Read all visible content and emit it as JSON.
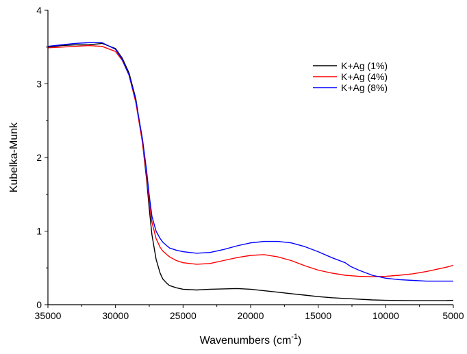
{
  "chart_data": {
    "type": "line",
    "title": "",
    "xlabel": "Wavenumbers (cm",
    "xlabel_sup": "-1",
    "xlabel_suffix": ")",
    "ylabel": "Kubelka-Munk",
    "xlim": [
      35000,
      5000
    ],
    "ylim": [
      0,
      4
    ],
    "x_ticks": [
      35000,
      30000,
      25000,
      20000,
      15000,
      10000,
      5000
    ],
    "x_tick_labels": [
      "35000",
      "30000",
      "25000",
      "20000",
      "15000",
      "10000",
      "5000"
    ],
    "y_ticks": [
      0,
      1,
      2,
      3,
      4
    ],
    "y_tick_labels": [
      "0",
      "1",
      "2",
      "3",
      "4"
    ],
    "grid": false,
    "legend_position": "top-right",
    "series": [
      {
        "name": "K+Ag (1%)",
        "color": "#000000",
        "x": [
          35000,
          34000,
          33000,
          32000,
          31000,
          30000,
          29500,
          29000,
          28500,
          28000,
          27700,
          27500,
          27300,
          27000,
          26700,
          26500,
          26200,
          26000,
          25500,
          25000,
          24000,
          23000,
          22000,
          21000,
          20000,
          19000,
          18000,
          17000,
          16000,
          15000,
          14000,
          13000,
          12000,
          11000,
          10000,
          9000,
          8000,
          7000,
          6000,
          5500,
          5000
        ],
        "y": [
          3.5,
          3.52,
          3.53,
          3.53,
          3.55,
          3.48,
          3.35,
          3.15,
          2.8,
          2.2,
          1.7,
          1.3,
          0.95,
          0.62,
          0.43,
          0.35,
          0.29,
          0.26,
          0.23,
          0.21,
          0.2,
          0.21,
          0.215,
          0.22,
          0.21,
          0.19,
          0.17,
          0.15,
          0.13,
          0.11,
          0.095,
          0.085,
          0.075,
          0.065,
          0.06,
          0.058,
          0.055,
          0.055,
          0.055,
          0.056,
          0.06
        ]
      },
      {
        "name": "K+Ag (4%)",
        "color": "#ff0000",
        "x": [
          35000,
          34000,
          33000,
          32000,
          31000,
          30000,
          29500,
          29000,
          28500,
          28000,
          27700,
          27500,
          27300,
          27000,
          26700,
          26500,
          26200,
          26000,
          25500,
          25000,
          24000,
          23000,
          22000,
          21000,
          20000,
          19000,
          18000,
          17000,
          16000,
          15000,
          14000,
          13000,
          12000,
          11000,
          10000,
          9000,
          8000,
          7000,
          6000,
          5500,
          5000
        ],
        "y": [
          3.49,
          3.5,
          3.51,
          3.52,
          3.51,
          3.44,
          3.32,
          3.12,
          2.75,
          2.2,
          1.75,
          1.4,
          1.12,
          0.9,
          0.78,
          0.73,
          0.68,
          0.65,
          0.6,
          0.57,
          0.55,
          0.56,
          0.6,
          0.64,
          0.67,
          0.68,
          0.65,
          0.6,
          0.53,
          0.47,
          0.43,
          0.4,
          0.385,
          0.38,
          0.385,
          0.4,
          0.42,
          0.45,
          0.49,
          0.51,
          0.535
        ]
      },
      {
        "name": "K+Ag (8%)",
        "color": "#0000ff",
        "x": [
          35000,
          34000,
          33000,
          32000,
          31000,
          30000,
          29500,
          29000,
          28500,
          28000,
          27700,
          27500,
          27300,
          27000,
          26700,
          26500,
          26200,
          26000,
          25500,
          25000,
          24000,
          23000,
          22000,
          21000,
          20000,
          19000,
          18000,
          17000,
          16000,
          15000,
          14000,
          13000,
          12600,
          12000,
          11000,
          10000,
          9000,
          8000,
          7000,
          6000,
          5500,
          5000
        ],
        "y": [
          3.51,
          3.53,
          3.55,
          3.56,
          3.56,
          3.47,
          3.33,
          3.12,
          2.78,
          2.25,
          1.82,
          1.48,
          1.2,
          1.0,
          0.9,
          0.85,
          0.8,
          0.77,
          0.74,
          0.72,
          0.7,
          0.71,
          0.75,
          0.8,
          0.84,
          0.86,
          0.86,
          0.84,
          0.79,
          0.72,
          0.64,
          0.57,
          0.52,
          0.47,
          0.4,
          0.36,
          0.34,
          0.33,
          0.32,
          0.32,
          0.32,
          0.32
        ]
      }
    ]
  }
}
